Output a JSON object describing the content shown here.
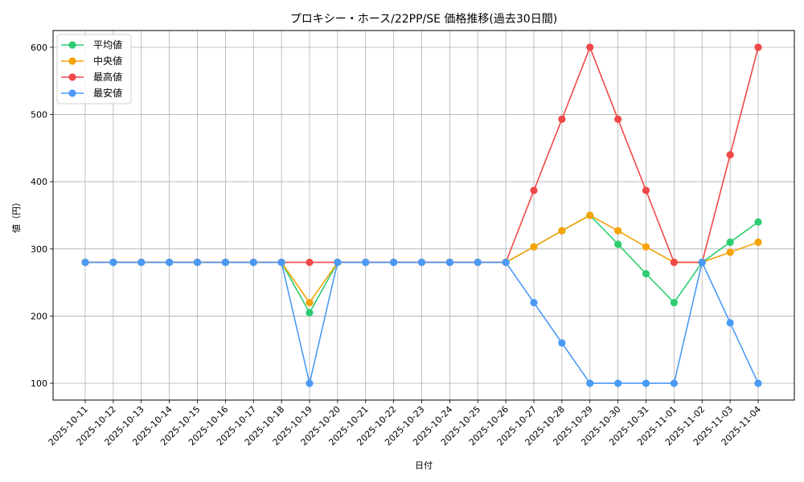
{
  "chart_data": {
    "type": "line",
    "title": "プロキシー・ホース/22PP/SE 価格推移(過去30日間)",
    "xlabel": "日付",
    "ylabel": "値（円）",
    "ylim": [
      75,
      625
    ],
    "yticks": [
      100,
      200,
      300,
      400,
      500,
      600
    ],
    "grid": true,
    "legend_position": "upper left",
    "categories": [
      "2025-10-11",
      "2025-10-12",
      "2025-10-13",
      "2025-10-14",
      "2025-10-15",
      "2025-10-16",
      "2025-10-17",
      "2025-10-18",
      "2025-10-19",
      "2025-10-20",
      "2025-10-21",
      "2025-10-22",
      "2025-10-23",
      "2025-10-24",
      "2025-10-25",
      "2025-10-26",
      "2025-10-27",
      "2025-10-28",
      "2025-10-29",
      "2025-10-30",
      "2025-10-31",
      "2025-11-01",
      "2025-11-02",
      "2025-11-03",
      "2025-11-04"
    ],
    "series": [
      {
        "name": "平均値",
        "color": "#2ecc71",
        "values": [
          280,
          280,
          280,
          280,
          280,
          280,
          280,
          280,
          205,
          280,
          280,
          280,
          280,
          280,
          280,
          280,
          303,
          327,
          350,
          307,
          263,
          220,
          280,
          310,
          340
        ]
      },
      {
        "name": "中央値",
        "color": "#f5a30a",
        "values": [
          280,
          280,
          280,
          280,
          280,
          280,
          280,
          280,
          220,
          280,
          280,
          280,
          280,
          280,
          280,
          280,
          303,
          327,
          350,
          327,
          303,
          280,
          280,
          295,
          310
        ]
      },
      {
        "name": "最高値",
        "color": "#f04848",
        "values": [
          280,
          280,
          280,
          280,
          280,
          280,
          280,
          280,
          280,
          280,
          280,
          280,
          280,
          280,
          280,
          280,
          387,
          493,
          600,
          493,
          387,
          280,
          280,
          440,
          600
        ]
      },
      {
        "name": "最安値",
        "color": "#4a9af5",
        "values": [
          280,
          280,
          280,
          280,
          280,
          280,
          280,
          280,
          100,
          280,
          280,
          280,
          280,
          280,
          280,
          280,
          220,
          160,
          100,
          100,
          100,
          100,
          280,
          190,
          100
        ]
      }
    ]
  }
}
